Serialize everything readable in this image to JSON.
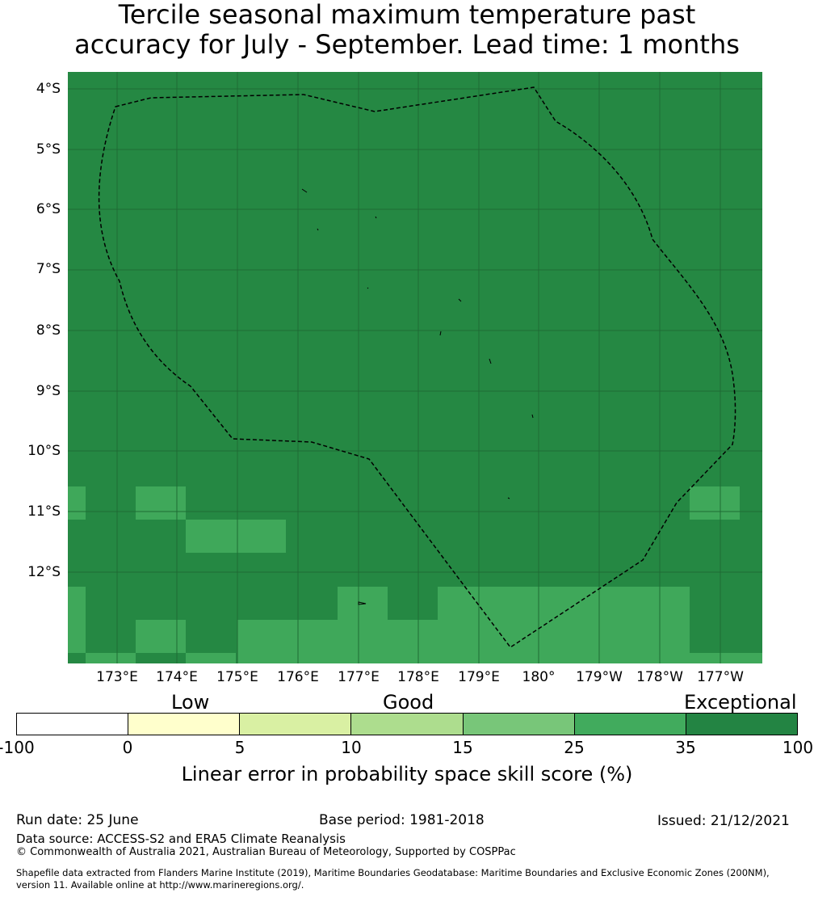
{
  "title": {
    "line1": "Tercile seasonal maximum temperature past",
    "line2": "accuracy for July - September. Lead time: 1 months"
  },
  "map": {
    "lat_labels": [
      "4°S",
      "5°S",
      "6°S",
      "7°S",
      "8°S",
      "9°S",
      "10°S",
      "11°S",
      "12°S"
    ],
    "lon_labels": [
      "173°E",
      "174°E",
      "175°E",
      "176°E",
      "177°E",
      "178°E",
      "179°E",
      "180°",
      "179°W",
      "178°W",
      "177°W"
    ],
    "base_color": "#258843",
    "good_color": "#3fa85a",
    "grid_color": "#1f6b34",
    "boundary_style": "dashed",
    "boundary_color": "#000000"
  },
  "legend": {
    "categories": [
      "Low",
      "Good",
      "Exceptional"
    ],
    "ticks": [
      "-100",
      "0",
      "5",
      "10",
      "15",
      "25",
      "35",
      "100"
    ],
    "colors": [
      "#ffffff",
      "#ffffcc",
      "#d9f0a3",
      "#addd8e",
      "#78c679",
      "#41ab5d",
      "#238443"
    ],
    "title": "Linear error in probability space skill score (%)"
  },
  "footer": {
    "run_date": "Run date: 25 June",
    "base_period": "Base period: 1981-2018",
    "issued": "Issued: 21/12/2021",
    "data_source": "Data source: ACCESS-S2 and ERA5 Climate Reanalysis",
    "copyright": "© Commonwealth of Australia 2021, Australian Bureau of Meteorology, Supported by COSPPac",
    "shapefile_line1": "Shapefile data extracted from Flanders Marine Institute (2019), Maritime Boundaries Geodatabase: Maritime Boundaries and Exclusive Economic Zones (200NM),",
    "shapefile_line2": "version 11. Available online at http://www.marineregions.org/."
  }
}
